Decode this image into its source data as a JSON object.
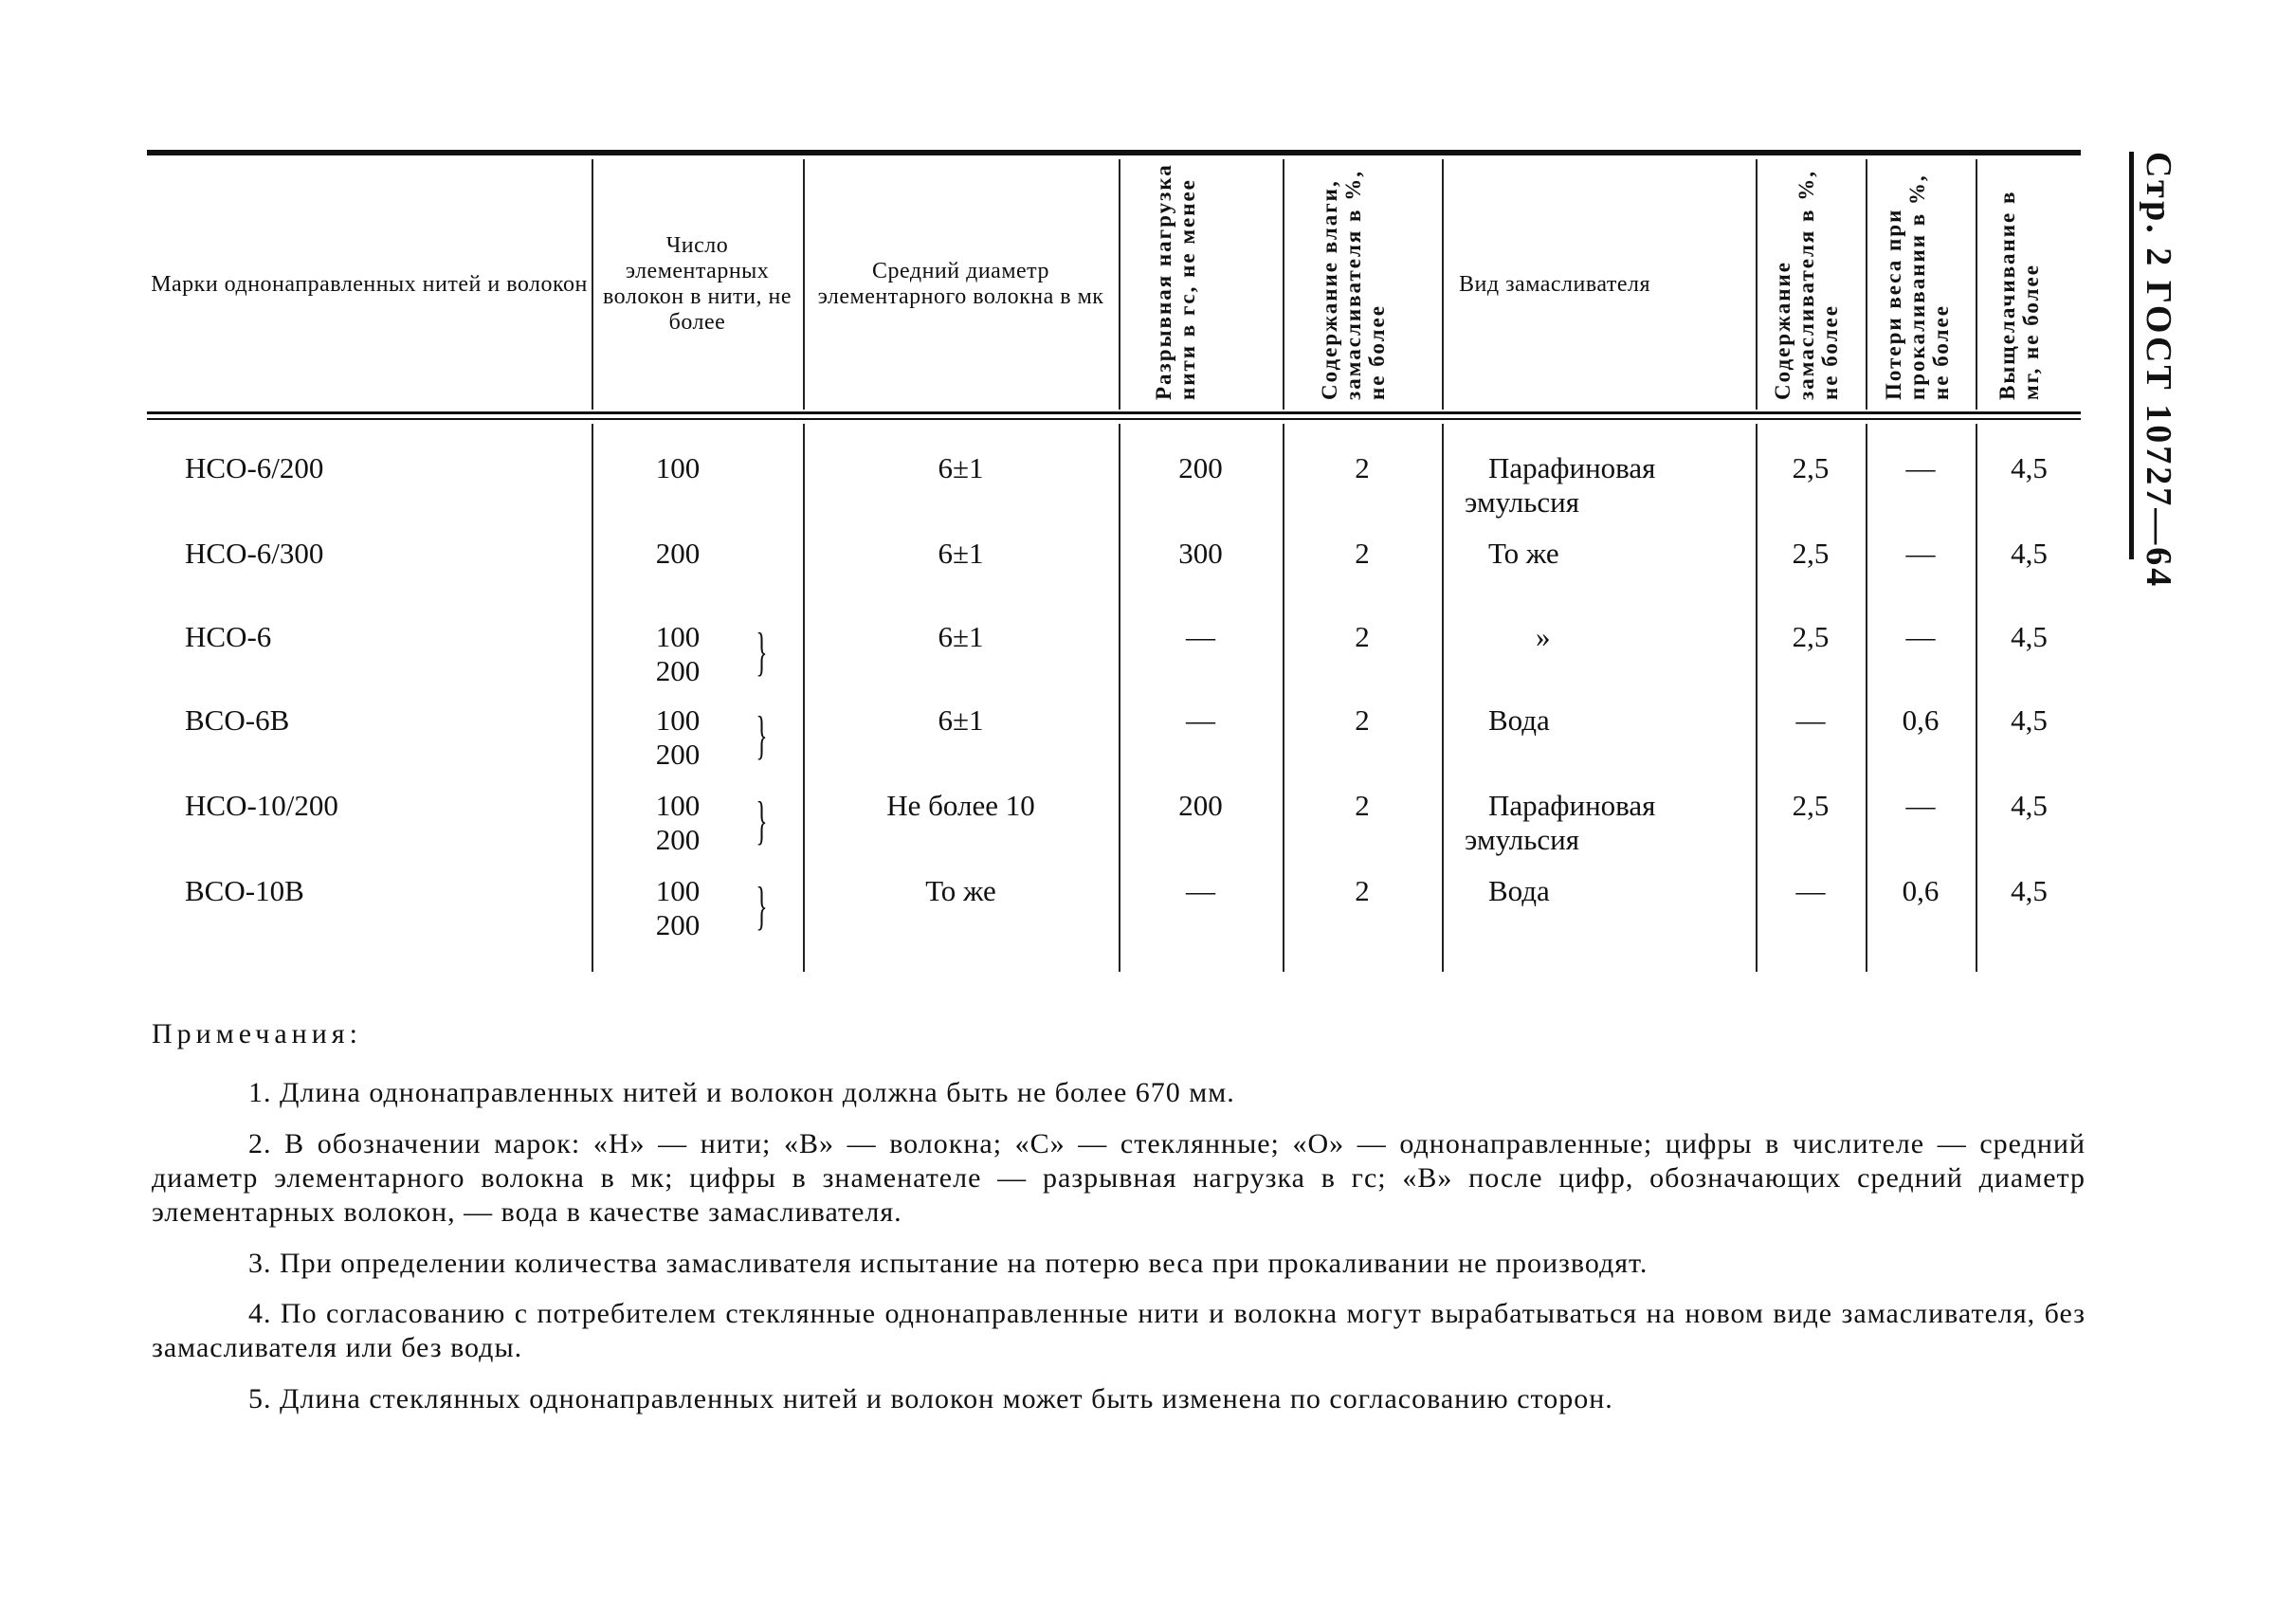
{
  "page_header": "Стр. 2 ГОСТ 10727—64",
  "table": {
    "headers": [
      "Марки однонаправленных нитей и волокон",
      "Число элементарных волокон в нити, не более",
      "Средний диаметр элементарного волокна в мк",
      "Разрывная нагрузка нити в гс, не менее",
      "Содержание влаги, замасливателя в %, не более",
      "Вид замасливателя",
      "Содержание замасливателя в %, не более",
      "Потери веса при прокаливании в %, не более",
      "Выщелачивание в мг, не более"
    ],
    "rows": [
      {
        "mark": "НСО-6/200",
        "fibers": [
          "100"
        ],
        "diameter": "6±1",
        "load": "200",
        "moisture": "2",
        "sizing": [
          "Парафиновая",
          "эмульсия"
        ],
        "sizing_content": "2,5",
        "loss": "—",
        "leach": "4,5"
      },
      {
        "mark": "НСО-6/300",
        "fibers": [
          "200"
        ],
        "diameter": "6±1",
        "load": "300",
        "moisture": "2",
        "sizing": [
          "То же"
        ],
        "sizing_content": "2,5",
        "loss": "—",
        "leach": "4,5"
      },
      {
        "mark": "НСО-6",
        "fibers": [
          "100",
          "200"
        ],
        "diameter": "6±1",
        "load": "—",
        "moisture": "2",
        "sizing": [
          "»"
        ],
        "sizing_content": "2,5",
        "loss": "—",
        "leach": "4,5"
      },
      {
        "mark": "ВСО-6В",
        "fibers": [
          "100",
          "200"
        ],
        "diameter": "6±1",
        "load": "—",
        "moisture": "2",
        "sizing": [
          "Вода"
        ],
        "sizing_content": "—",
        "loss": "0,6",
        "leach": "4,5"
      },
      {
        "mark": "НСО-10/200",
        "fibers": [
          "100",
          "200"
        ],
        "diameter": "Не более 10",
        "load": "200",
        "moisture": "2",
        "sizing": [
          "Парафиновая",
          "эмульсия"
        ],
        "sizing_content": "2,5",
        "loss": "—",
        "leach": "4,5"
      },
      {
        "mark": "ВСО-10В",
        "fibers": [
          "100",
          "200"
        ],
        "diameter": "То же",
        "load": "—",
        "moisture": "2",
        "sizing": [
          "Вода"
        ],
        "sizing_content": "—",
        "loss": "0,6",
        "leach": "4,5"
      }
    ]
  },
  "notes": {
    "title": "Примечания:",
    "items": [
      "1. Длина однонаправленных нитей и волокон должна быть не более 670 мм.",
      "2. В обозначении марок: «Н» — нити; «В» — волокна; «С» — стеклянные; «О» — однонаправленные; цифры в числителе — средний диаметр элементарного волокна в мк; цифры в знаменателе — разрывная нагрузка в гс; «В» после цифр, обозначающих средний диаметр элементарных волокон, — вода в качестве замасливателя.",
      "3. При определении количества замасливателя испытание на потерю веса при прокаливании не производят.",
      "4. По согласованию с потребителем стеклянные однонаправленные нити и волокна могут вырабатываться на новом виде замасливателя, без замасливателя или без воды.",
      "5. Длина стеклянных однонаправленных нитей и волокон может быть изменена по согласованию сторон."
    ]
  }
}
